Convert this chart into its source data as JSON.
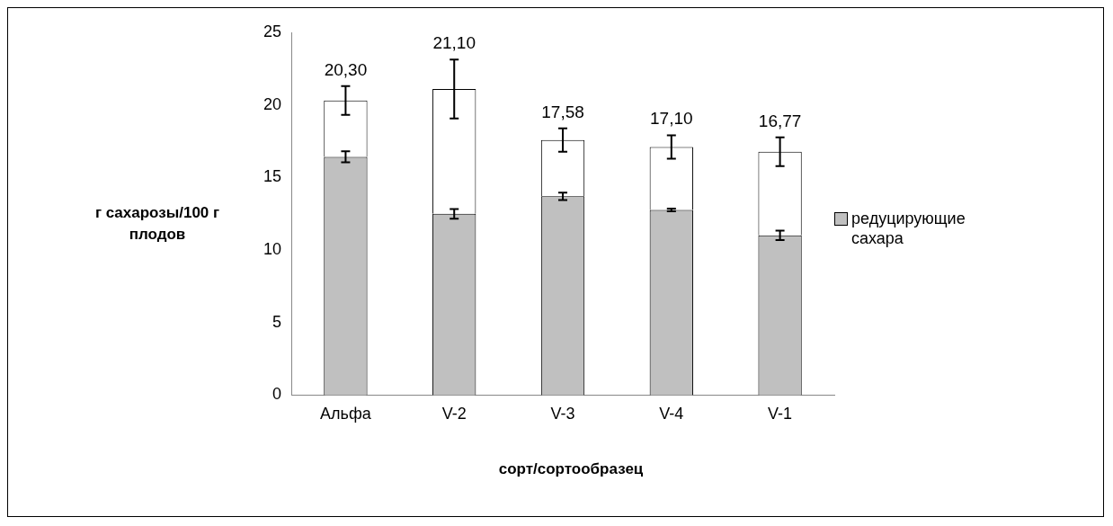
{
  "chart_data": {
    "type": "bar",
    "stacked": true,
    "xlabel": "сорт/сортообразец",
    "ylabel": "г сахарозы/100 г плодов",
    "categories": [
      "Альфа",
      "V-2",
      "V-3",
      "V-4",
      "V-1"
    ],
    "series": [
      {
        "name": "редуцирующие сахара",
        "color": "#c0c0c0",
        "values": [
          16.42,
          12.49,
          13.7,
          12.76,
          11.01
        ],
        "errors": [
          0.38,
          0.33,
          0.26,
          0.1,
          0.32
        ]
      },
      {
        "color": "#ffffff",
        "values": [
          3.88,
          8.61,
          3.88,
          4.34,
          5.76
        ],
        "errors": [
          0.99,
          2.03,
          0.8,
          0.81,
          0.99
        ]
      }
    ],
    "totals": [
      "20,30",
      "21,10",
      "17,58",
      "17,10",
      "16,77"
    ],
    "ylim": [
      0,
      25
    ],
    "yticks": [
      0,
      5,
      10,
      15,
      20,
      25
    ],
    "grid": false,
    "legend": "right"
  }
}
